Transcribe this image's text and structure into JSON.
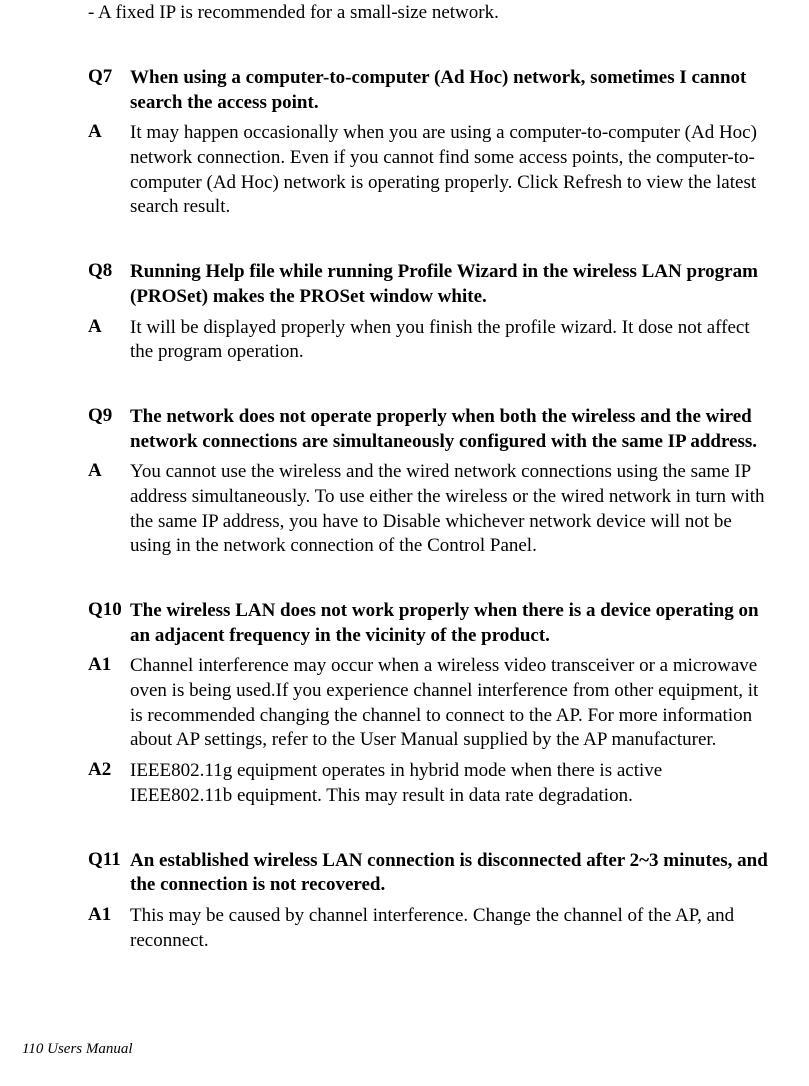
{
  "intro": "- A fixed IP is recommended for a small-size network.",
  "qa": [
    {
      "qlabel": "Q7",
      "qtext": "When using a computer-to-computer (Ad Hoc) network, sometimes I cannot search the access point.",
      "answers": [
        {
          "alabel": "A",
          "atext": "It may happen occasionally when you are using a computer-to-computer (Ad Hoc) network connection. Even if you cannot find some access points, the computer-to-computer (Ad Hoc) network is operating properly. Click Refresh to view the latest search result."
        }
      ]
    },
    {
      "qlabel": "Q8",
      "qtext": "Running Help file while running Profile Wizard in the wireless LAN program (PROSet) makes the PROSet window white.",
      "answers": [
        {
          "alabel": "A",
          "atext": "It will be displayed properly when you finish the profile wizard. It dose not affect the program operation."
        }
      ]
    },
    {
      "qlabel": "Q9",
      "qtext": "The network does not operate properly when both the wireless and the wired network connections are simultaneously configured with the same IP address.",
      "answers": [
        {
          "alabel": "A",
          "atext": "You cannot use the wireless and the wired network connections using the same IP address simultaneously. To use either the wireless or the wired network in turn with the same IP address, you have to Disable whichever network device will not be using in the network connection of the Control Panel."
        }
      ]
    },
    {
      "qlabel": "Q10",
      "qtext": "The wireless LAN does not work properly when there is a device operating on an adjacent frequency in the vicinity of the product.",
      "answers": [
        {
          "alabel": "A1",
          "atext": "Channel interference may occur when a wireless video transceiver or a microwave oven is being used.If you experience channel interference from other equipment, it is recommended changing the channel to connect to the AP. For more information about AP settings, refer to the User Manual supplied by the AP manufacturer."
        },
        {
          "alabel": "A2",
          "atext": "IEEE802.11g equipment operates in hybrid mode when there is active IEEE802.11b equipment. This may result in data rate degradation."
        }
      ]
    },
    {
      "qlabel": "Q11",
      "qtext": "An established wireless LAN connection is disconnected after 2~3 minutes, and the connection is not recovered.",
      "answers": [
        {
          "alabel": "A1",
          "atext": "This may be caused by channel interference. Change the channel of the AP, and reconnect."
        }
      ]
    }
  ],
  "footer": "110  Users Manual"
}
